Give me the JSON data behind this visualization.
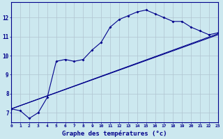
{
  "xlabel": "Graphe des températures (°c)",
  "background_color": "#cce8ef",
  "line_color": "#00008b",
  "grid_color": "#b0c4d0",
  "hours": [
    0,
    1,
    2,
    3,
    4,
    5,
    6,
    7,
    8,
    9,
    10,
    11,
    12,
    13,
    14,
    15,
    16,
    17,
    18,
    19,
    20,
    21,
    22,
    23
  ],
  "line1": [
    7.2,
    7.1,
    6.7,
    7.0,
    7.8,
    9.7,
    9.8,
    9.7,
    9.8,
    10.3,
    10.7,
    11.5,
    11.9,
    12.1,
    12.3,
    12.4,
    12.2,
    12.0,
    11.8,
    11.8,
    11.5,
    11.3,
    11.1,
    11.2
  ],
  "line2_x": [
    0,
    23
  ],
  "line2_y": [
    7.2,
    11.1
  ],
  "line3_x": [
    0,
    23
  ],
  "line3_y": [
    7.2,
    11.15
  ],
  "ylim": [
    6.5,
    12.8
  ],
  "yticks": [
    7,
    8,
    9,
    10,
    11,
    12
  ],
  "xlim": [
    0,
    23
  ],
  "xticks": [
    0,
    1,
    2,
    3,
    4,
    5,
    6,
    7,
    8,
    9,
    10,
    11,
    12,
    13,
    14,
    15,
    16,
    17,
    18,
    19,
    20,
    21,
    22,
    23
  ]
}
